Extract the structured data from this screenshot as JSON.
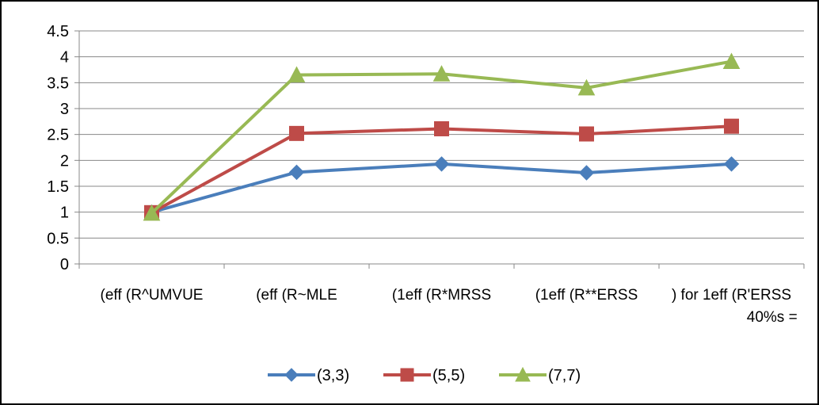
{
  "chart_data": {
    "type": "line",
    "categories": [
      [
        "(eff (R^UMVUE"
      ],
      [
        "(eff (R~MLE"
      ],
      [
        "(1eff (R*MRSS"
      ],
      [
        "(1eff (R**ERSS"
      ],
      [
        ") for 1eff (R'ERSS",
        "40%s ="
      ]
    ],
    "ylim": [
      0,
      4.5
    ],
    "yticks": [
      0,
      0.5,
      1,
      1.5,
      2,
      2.5,
      3,
      3.5,
      4,
      4.5
    ],
    "ytick_labels": [
      "0",
      "0.5",
      "1",
      "1.5",
      "2",
      "2.5",
      "3",
      "3.5",
      "4",
      "4.5"
    ],
    "grid": true,
    "legend_position": "bottom",
    "series": [
      {
        "name": "(3,3)",
        "color": "#4A7EBB",
        "marker": "diamond",
        "values": [
          1.0,
          1.77,
          1.93,
          1.76,
          1.93
        ]
      },
      {
        "name": "(5,5)",
        "color": "#BE4B48",
        "marker": "square",
        "values": [
          0.99,
          2.52,
          2.61,
          2.51,
          2.66
        ]
      },
      {
        "name": "(7,7)",
        "color": "#98B954",
        "marker": "triangle",
        "values": [
          0.98,
          3.65,
          3.67,
          3.4,
          3.91
        ]
      }
    ]
  }
}
